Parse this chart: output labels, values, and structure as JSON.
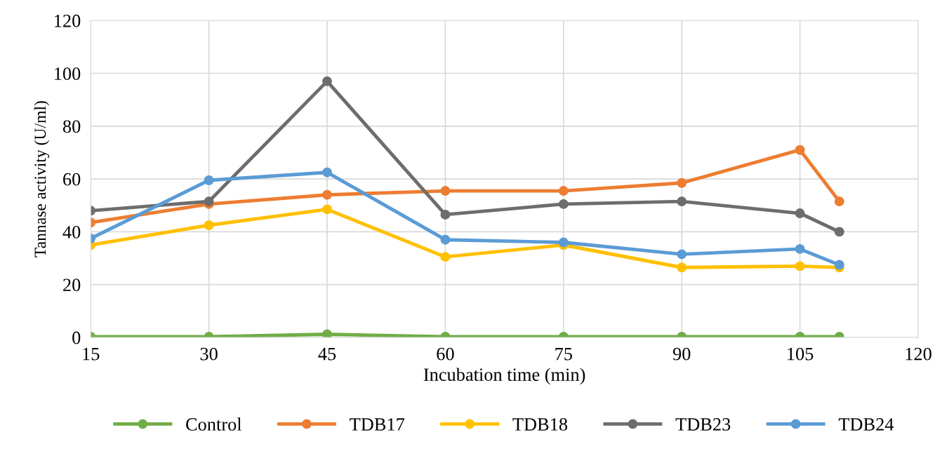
{
  "chart_data": {
    "type": "line",
    "xlabel": "Incubation time (min)",
    "ylabel": "Tannase activity (U/ml)",
    "x": [
      15,
      30,
      45,
      60,
      75,
      90,
      105,
      110
    ],
    "xlim": [
      15,
      120
    ],
    "xticks": [
      15,
      30,
      45,
      60,
      75,
      90,
      105,
      120
    ],
    "ylim": [
      0,
      120
    ],
    "yticks": [
      0,
      20,
      40,
      60,
      80,
      100,
      120
    ],
    "grid": true,
    "legend": "bottom",
    "marker": "circle",
    "line_style": "solid",
    "series": [
      {
        "name": "Control",
        "color": "#70ad47",
        "values": [
          0.3,
          0.3,
          1.2,
          0.3,
          0.3,
          0.3,
          0.3,
          0.3
        ]
      },
      {
        "name": "TDB17",
        "color": "#ed7d31",
        "values": [
          43.5,
          50.5,
          54,
          55.5,
          55.5,
          58.5,
          71,
          51.5
        ]
      },
      {
        "name": "TDB18",
        "color": "#ffc000",
        "values": [
          35,
          42.5,
          48.5,
          30.5,
          35,
          26.5,
          27,
          26.5
        ]
      },
      {
        "name": "TDB23",
        "color": "#6d6d6d",
        "values": [
          48,
          51.5,
          97,
          46.5,
          50.5,
          51.5,
          47,
          40
        ]
      },
      {
        "name": "TDB24",
        "color": "#5b9bd5",
        "values": [
          37.5,
          59.5,
          62.5,
          37,
          36,
          31.5,
          33.5,
          27.5
        ]
      }
    ]
  }
}
